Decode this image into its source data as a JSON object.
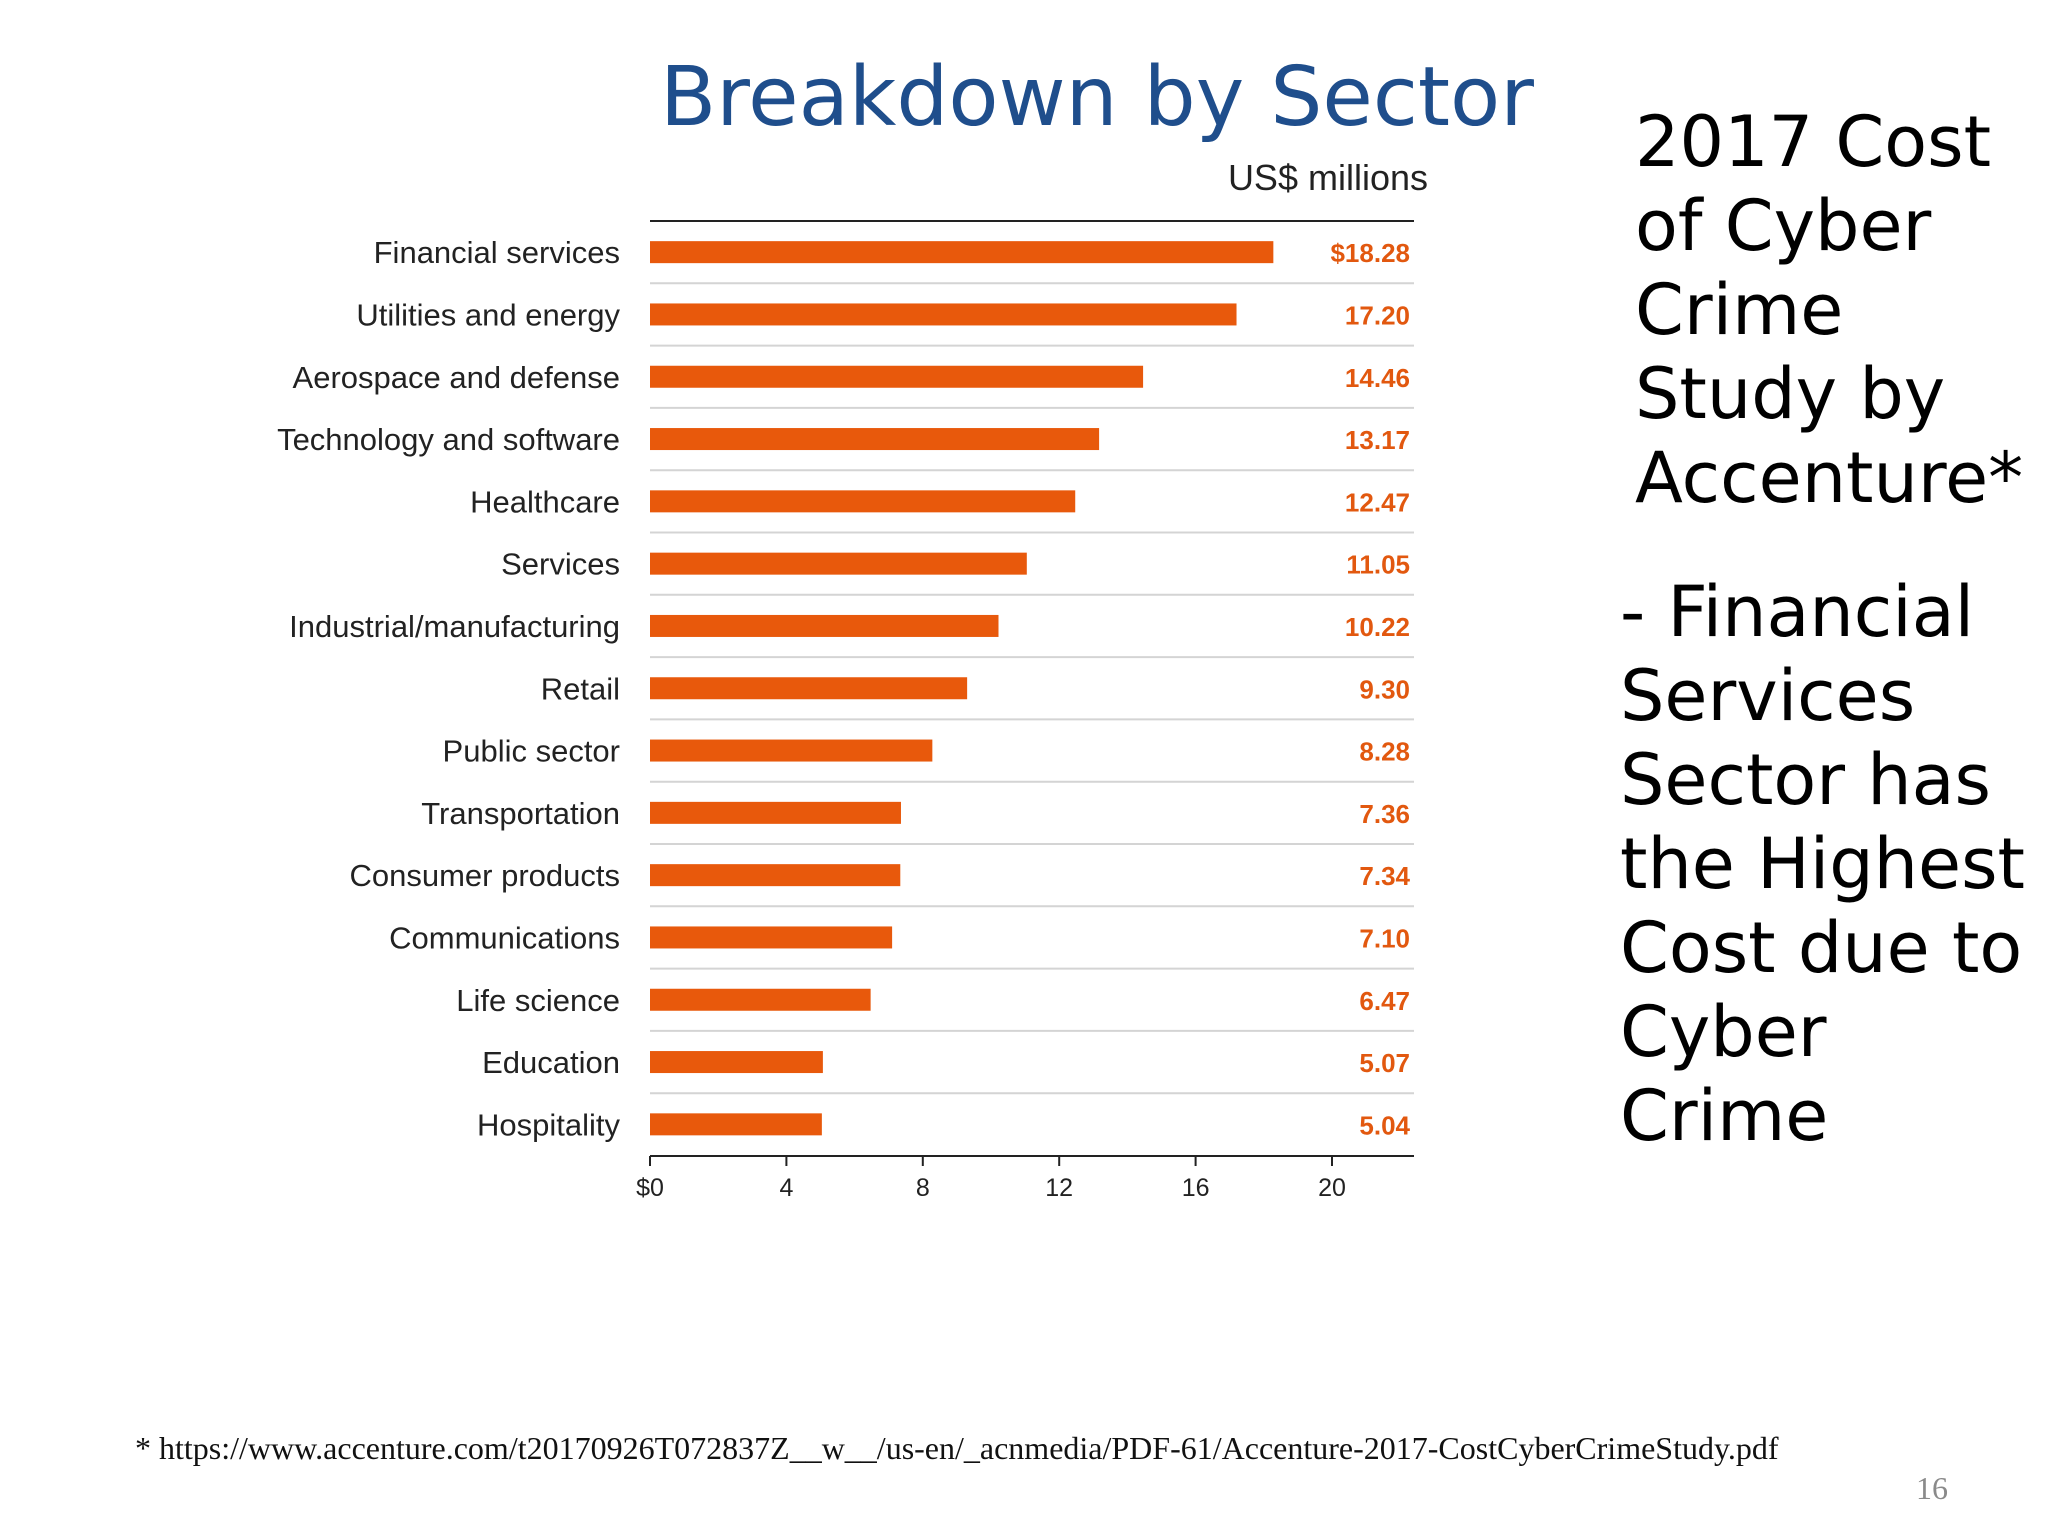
{
  "slide": {
    "title": "Breakdown by Sector",
    "side_heading": "2017 Cost of Cyber Crime Study by Accenture*",
    "side_body": "- Financial Services Sector has the Highest Cost due to Cyber Crime",
    "footnote": "* https://www.accenture.com/t20170926T072837Z__w__/us-en/_acnmedia/PDF-61/Accenture-2017-CostCyberCrimeStudy.pdf",
    "page_number": "16"
  },
  "colors": {
    "bar": "#e8590c",
    "value_label": "#e2580f",
    "title": "#1f4e8c"
  },
  "chart_data": {
    "type": "bar",
    "orientation": "horizontal",
    "unit_label": "US$ millions",
    "categories": [
      "Financial services",
      "Utilities and energy",
      "Aerospace and defense",
      "Technology and software",
      "Healthcare",
      "Services",
      "Industrial/manufacturing",
      "Retail",
      "Public sector",
      "Transportation",
      "Consumer products",
      "Communications",
      "Life science",
      "Education",
      "Hospitality"
    ],
    "values": [
      18.28,
      17.2,
      14.46,
      13.17,
      12.47,
      11.05,
      10.22,
      9.3,
      8.28,
      7.36,
      7.34,
      7.1,
      6.47,
      5.07,
      5.04
    ],
    "value_labels": [
      "$18.28",
      "17.20",
      "14.46",
      "13.17",
      "12.47",
      "11.05",
      "10.22",
      "9.30",
      "8.28",
      "7.36",
      "7.34",
      "7.10",
      "6.47",
      "5.07",
      "5.04"
    ],
    "xticks": [
      0,
      4,
      8,
      12,
      16,
      20
    ],
    "xtick_labels": [
      "$0",
      "4",
      "8",
      "12",
      "16",
      "20"
    ],
    "xlim": [
      0,
      22.4
    ],
    "grid": false
  }
}
